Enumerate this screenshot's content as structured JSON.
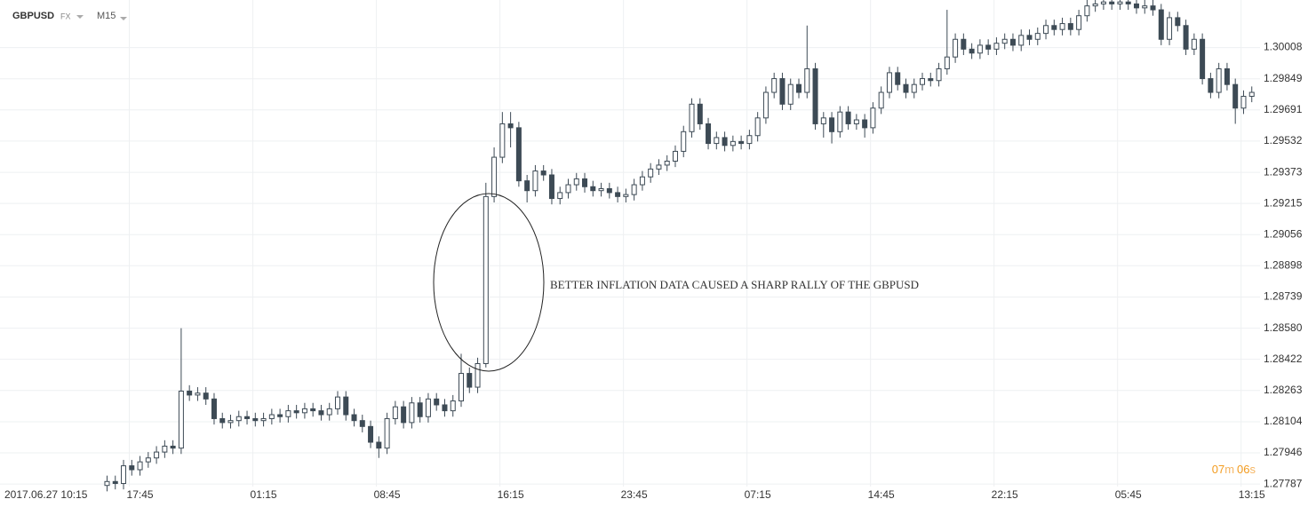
{
  "header": {
    "symbol": "GBPUSD",
    "market": "FX",
    "timeframe": "M15"
  },
  "countdown": {
    "minutes": "07",
    "m": "m",
    "seconds": "06",
    "s": "s"
  },
  "chart_data": {
    "type": "candlestick",
    "annotation": "BETTER INFLATION DATA CAUSED A SHARP RALLY OF THE GBPUSD",
    "start_label": "2017.06.27  10:15",
    "up_color": "#ffffff",
    "down_color": "#3d4a55",
    "outline_color": "#3d4a55",
    "grid": true,
    "xlim": [
      -13,
      140
    ],
    "xticks": [
      {
        "value": 4,
        "label": "17:45"
      },
      {
        "value": 19,
        "label": "01:15"
      },
      {
        "value": 34,
        "label": "08:45"
      },
      {
        "value": 49,
        "label": "16:15"
      },
      {
        "value": 64,
        "label": "23:45"
      },
      {
        "value": 79,
        "label": "07:15"
      },
      {
        "value": 94,
        "label": "14:45"
      },
      {
        "value": 109,
        "label": "22:15"
      },
      {
        "value": 124,
        "label": "05:45"
      },
      {
        "value": 139,
        "label": "13:15"
      }
    ],
    "ylim": [
      1.2772,
      1.3025
    ],
    "yticks": [
      1.30008,
      1.29849,
      1.29691,
      1.29532,
      1.29373,
      1.29215,
      1.29056,
      1.28898,
      1.28739,
      {
        "value": 1.2858,
        "label": "1.28580"
      },
      1.28422,
      1.28263,
      1.28104,
      1.27946,
      1.27787
    ],
    "open": [
      1.2778,
      1.278,
      1.2779,
      1.2788,
      1.2786,
      1.279,
      1.2792,
      1.2795,
      1.2798,
      1.2797,
      1.2826,
      1.2824,
      1.2825,
      1.2822,
      1.2812,
      1.281,
      1.2811,
      1.2813,
      1.2812,
      1.2811,
      1.2812,
      1.2814,
      1.2813,
      1.2816,
      1.2815,
      1.2817,
      1.2816,
      1.2814,
      1.2817,
      1.2823,
      1.2814,
      1.2811,
      1.2808,
      1.28,
      1.2797,
      1.2812,
      1.2818,
      1.281,
      1.282,
      1.2813,
      1.2822,
      1.2819,
      1.2816,
      1.2821,
      1.2835,
      1.2828,
      1.284,
      1.2925,
      1.2945,
      1.2962,
      1.296,
      1.2933,
      1.2928,
      1.2938,
      1.2936,
      1.2924,
      1.2927,
      1.2931,
      1.2934,
      1.293,
      1.2928,
      1.2929,
      1.2927,
      1.2925,
      1.2926,
      1.2931,
      1.2935,
      1.2939,
      1.2941,
      1.2943,
      1.2948,
      1.2958,
      1.2972,
      1.2962,
      1.2952,
      1.2955,
      1.2951,
      1.2953,
      1.2952,
      1.2956,
      1.2965,
      1.2978,
      1.2985,
      1.2972,
      1.2982,
      1.2978,
      1.299,
      1.2962,
      1.2965,
      1.2958,
      1.2968,
      1.2962,
      1.2964,
      1.296,
      1.297,
      1.2978,
      1.2988,
      1.2982,
      1.2978,
      1.2982,
      1.2985,
      1.2984,
      1.299,
      1.2996,
      1.3005,
      1.3,
      1.2998,
      1.3002,
      1.3,
      1.3003,
      1.3005,
      1.3002,
      1.3007,
      1.3005,
      1.3008,
      1.3012,
      1.301,
      1.3013,
      1.301,
      1.3017,
      1.3022,
      1.3023,
      1.3024,
      1.3023,
      1.3024,
      1.3023,
      1.3021,
      1.3022,
      1.302,
      1.3005,
      1.3016,
      1.3012,
      1.3,
      1.3005,
      1.2985,
      1.2978,
      1.299,
      1.2982,
      1.297,
      1.2976
    ],
    "high": [
      1.2783,
      1.2783,
      1.2791,
      1.2791,
      1.2793,
      1.2795,
      1.2798,
      1.2801,
      1.2801,
      1.2858,
      1.2829,
      1.2828,
      1.2828,
      1.2825,
      1.2815,
      1.2814,
      1.2816,
      1.2816,
      1.2815,
      1.2815,
      1.2817,
      1.2817,
      1.2819,
      1.2819,
      1.282,
      1.282,
      1.2819,
      1.282,
      1.2826,
      1.2826,
      1.2817,
      1.2814,
      1.2811,
      1.2803,
      1.2815,
      1.2821,
      1.2821,
      1.2823,
      1.2823,
      1.2825,
      1.2825,
      1.2822,
      1.2824,
      1.2845,
      1.2838,
      1.2843,
      1.2932,
      1.295,
      1.2968,
      1.2968,
      1.2963,
      1.2936,
      1.2941,
      1.2941,
      1.2939,
      1.293,
      1.2934,
      1.2937,
      1.2937,
      1.2933,
      1.2932,
      1.2932,
      1.293,
      1.2929,
      1.2934,
      1.2938,
      1.2942,
      1.2944,
      1.2946,
      1.2951,
      1.2961,
      1.2975,
      1.2975,
      1.2965,
      1.2958,
      1.2958,
      1.2956,
      1.2956,
      1.2959,
      1.2968,
      1.2981,
      1.2988,
      1.2988,
      1.2985,
      1.2985,
      1.3012,
      1.2993,
      1.2968,
      1.2968,
      1.2971,
      1.2971,
      1.2967,
      1.2967,
      1.2973,
      1.2981,
      1.2991,
      1.2991,
      1.2985,
      1.2985,
      1.2988,
      1.2988,
      1.2993,
      1.302,
      1.3008,
      1.3008,
      1.3003,
      1.3005,
      1.3005,
      1.3006,
      1.3008,
      1.3008,
      1.301,
      1.301,
      1.3011,
      1.3015,
      1.3015,
      1.3016,
      1.3016,
      1.302,
      1.3025,
      1.3026,
      1.3027,
      1.3027,
      1.3027,
      1.3027,
      1.3026,
      1.3025,
      1.3025,
      1.3023,
      1.3019,
      1.3019,
      1.3015,
      1.3008,
      1.3008,
      1.2988,
      1.2993,
      1.2993,
      1.2985,
      1.2979,
      1.2981
    ],
    "low": [
      1.2775,
      1.2776,
      1.2776,
      1.2783,
      1.2783,
      1.2787,
      1.2789,
      1.2792,
      1.2794,
      1.2794,
      1.2821,
      1.2821,
      1.2819,
      1.2809,
      1.2807,
      1.2807,
      1.2808,
      1.2809,
      1.2808,
      1.2808,
      1.2809,
      1.281,
      1.281,
      1.2812,
      1.2812,
      1.2813,
      1.2811,
      1.2811,
      1.2814,
      1.2811,
      1.2808,
      1.2805,
      1.2797,
      1.2792,
      1.2794,
      1.2809,
      1.2807,
      1.2807,
      1.281,
      1.281,
      1.2816,
      1.2813,
      1.2813,
      1.2818,
      1.2825,
      1.2825,
      1.2838,
      1.2922,
      1.2942,
      1.295,
      1.293,
      1.2922,
      1.2925,
      1.2933,
      1.2921,
      1.2921,
      1.2924,
      1.2928,
      1.2927,
      1.2925,
      1.2925,
      1.2924,
      1.2922,
      1.2922,
      1.2923,
      1.2928,
      1.2932,
      1.2936,
      1.2938,
      1.294,
      1.2945,
      1.2955,
      1.2959,
      1.2949,
      1.2949,
      1.2948,
      1.2948,
      1.2949,
      1.2949,
      1.2953,
      1.2962,
      1.2975,
      1.2969,
      1.2969,
      1.2975,
      1.2975,
      1.2959,
      1.2955,
      1.2952,
      1.2955,
      1.2959,
      1.2959,
      1.2955,
      1.2957,
      1.2967,
      1.2975,
      1.2979,
      1.2975,
      1.2975,
      1.2979,
      1.2981,
      1.2981,
      1.2987,
      1.2993,
      1.2997,
      1.2995,
      1.2995,
      1.2997,
      1.2997,
      1.3,
      1.2999,
      1.2999,
      1.3002,
      1.3002,
      1.3005,
      1.3007,
      1.3007,
      1.3007,
      1.3007,
      1.3014,
      1.3019,
      1.302,
      1.302,
      1.302,
      1.302,
      1.3018,
      1.3018,
      1.3017,
      1.3002,
      1.3002,
      1.3009,
      1.2997,
      1.2997,
      1.2982,
      1.2975,
      1.2975,
      1.2979,
      1.2962,
      1.2967,
      1.2973
    ],
    "close": [
      1.278,
      1.2779,
      1.2788,
      1.2786,
      1.279,
      1.2792,
      1.2795,
      1.2798,
      1.2797,
      1.2826,
      1.2824,
      1.2825,
      1.2822,
      1.2812,
      1.281,
      1.2811,
      1.2813,
      1.2812,
      1.2811,
      1.2812,
      1.2814,
      1.2813,
      1.2816,
      1.2815,
      1.2817,
      1.2816,
      1.2814,
      1.2817,
      1.2823,
      1.2814,
      1.2811,
      1.2808,
      1.28,
      1.2797,
      1.2812,
      1.2818,
      1.281,
      1.282,
      1.2813,
      1.2822,
      1.2819,
      1.2816,
      1.2821,
      1.2835,
      1.2828,
      1.284,
      1.2925,
      1.2945,
      1.2962,
      1.296,
      1.2933,
      1.2928,
      1.2938,
      1.2936,
      1.2924,
      1.2927,
      1.2931,
      1.2934,
      1.293,
      1.2928,
      1.2929,
      1.2927,
      1.2925,
      1.2926,
      1.2931,
      1.2935,
      1.2939,
      1.2941,
      1.2943,
      1.2948,
      1.2958,
      1.2972,
      1.2962,
      1.2952,
      1.2955,
      1.2951,
      1.2953,
      1.2952,
      1.2956,
      1.2965,
      1.2978,
      1.2985,
      1.2972,
      1.2982,
      1.2978,
      1.299,
      1.2962,
      1.2965,
      1.2958,
      1.2968,
      1.2962,
      1.2964,
      1.296,
      1.297,
      1.2978,
      1.2988,
      1.2982,
      1.2978,
      1.2982,
      1.2985,
      1.2984,
      1.299,
      1.2996,
      1.3005,
      1.3,
      1.2998,
      1.3002,
      1.3,
      1.3003,
      1.3005,
      1.3002,
      1.3007,
      1.3005,
      1.3008,
      1.3012,
      1.301,
      1.3013,
      1.301,
      1.3017,
      1.3022,
      1.3023,
      1.3024,
      1.3023,
      1.3024,
      1.3023,
      1.3021,
      1.3022,
      1.302,
      1.3005,
      1.3016,
      1.3012,
      1.3,
      1.3005,
      1.2985,
      1.2978,
      1.299,
      1.2982,
      1.297,
      1.2976,
      1.2978
    ]
  }
}
